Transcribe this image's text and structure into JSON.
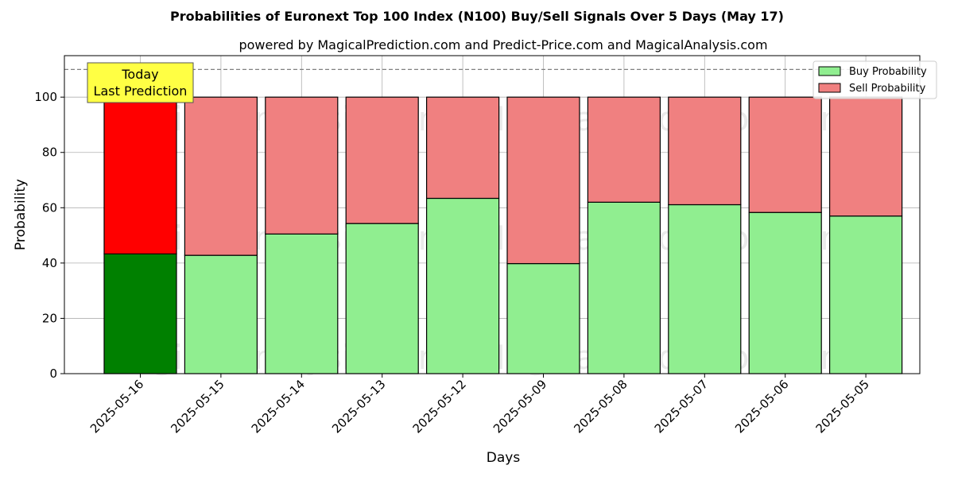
{
  "chart_data": {
    "type": "bar",
    "stacked": true,
    "title": "Probabilities of Euronext Top 100 Index (N100) Buy/Sell Signals Over 5 Days (May 17)",
    "subtitle": "powered by MagicalPrediction.com and Predict-Price.com and MagicalAnalysis.com",
    "xlabel": "Days",
    "ylabel": "Probability",
    "ylim": [
      0,
      115
    ],
    "yticks": [
      0,
      20,
      40,
      60,
      80,
      100
    ],
    "reference_line": 110,
    "grid": true,
    "legend_position": "top-right",
    "categories": [
      "2025-05-16",
      "2025-05-15",
      "2025-05-14",
      "2025-05-13",
      "2025-05-12",
      "2025-05-09",
      "2025-05-08",
      "2025-05-07",
      "2025-05-06",
      "2025-05-05"
    ],
    "series": [
      {
        "name": "Buy Probability",
        "color": "#90ee90",
        "highlight_color": "#008000",
        "values": [
          43.3,
          42.8,
          50.5,
          54.3,
          63.4,
          39.8,
          62.0,
          61.1,
          58.3,
          57.0
        ]
      },
      {
        "name": "Sell Probability",
        "color": "#f08080",
        "highlight_color": "#ff0000",
        "values": [
          56.7,
          57.2,
          49.5,
          45.7,
          36.6,
          60.2,
          38.0,
          38.9,
          41.7,
          43.0
        ]
      }
    ],
    "annotation": {
      "lines": [
        "Today",
        "Last Prediction"
      ],
      "background": "#ffff44"
    },
    "watermarks": [
      "MagicalAnalysis.com",
      "MagicalPrediction.com"
    ]
  }
}
